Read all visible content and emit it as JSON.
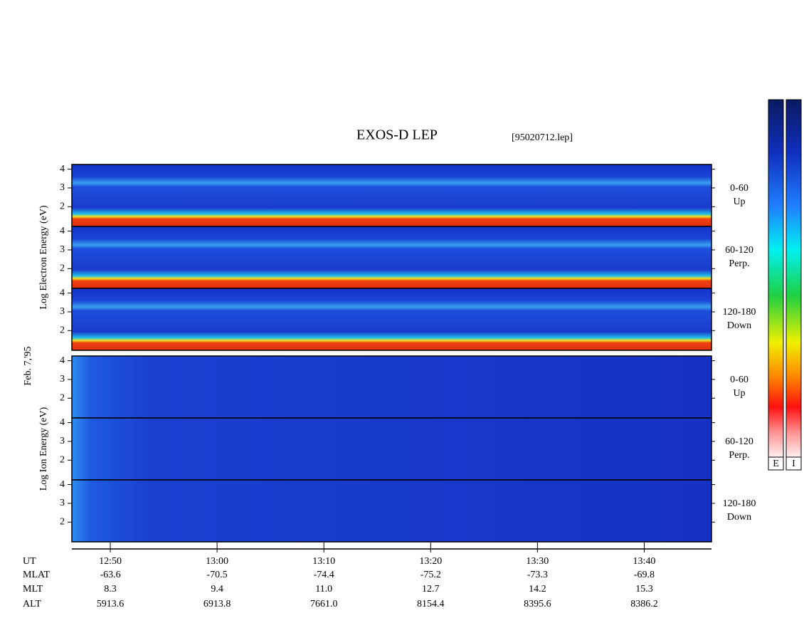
{
  "chart_data": {
    "type": "spectrogram",
    "title": "EXOS-D LEP",
    "subtitle": "[95020712.lep]",
    "date_label": "Feb. 7,'95",
    "groups": [
      {
        "label": "Log  Electron  Energy (eV)",
        "kind": "electron",
        "panels": [
          {
            "lines": [
              "0-60",
              "Up"
            ]
          },
          {
            "lines": [
              "60-120",
              "Perp."
            ]
          },
          {
            "lines": [
              "120-180",
              "Down"
            ]
          }
        ]
      },
      {
        "label": "Log   Ion   Energy (eV)",
        "kind": "ion",
        "panels": [
          {
            "lines": [
              "0-60",
              "Up"
            ]
          },
          {
            "lines": [
              "60-120",
              "Perp."
            ]
          },
          {
            "lines": [
              "120-180",
              "Down"
            ]
          }
        ]
      }
    ],
    "ylim": [
      0.95,
      4.25
    ],
    "yticks": [
      2,
      3,
      4
    ],
    "xlim": [
      766.4,
      826.3
    ],
    "xticks": [
      {
        "value": 770,
        "label": "12:50"
      },
      {
        "value": 780,
        "label": "13:00"
      },
      {
        "value": 790,
        "label": "13:10"
      },
      {
        "value": 800,
        "label": "13:20"
      },
      {
        "value": 810,
        "label": "13:30"
      },
      {
        "value": 820,
        "label": "13:40"
      }
    ],
    "ephemeris": {
      "names": [
        "UT",
        "MLAT",
        "MLT",
        "ALT"
      ],
      "rows": [
        [
          "-63.6",
          "-70.5",
          "-74.4",
          "-75.2",
          "-73.3",
          "-69.8"
        ],
        [
          "8.3",
          "9.4",
          "11.0",
          "12.7",
          "14.2",
          "15.3"
        ],
        [
          "5913.6",
          "6913.8",
          "7661.0",
          "8154.4",
          "8395.6",
          "8386.2"
        ]
      ]
    },
    "colorbar_labels": [
      "E",
      "I"
    ]
  }
}
